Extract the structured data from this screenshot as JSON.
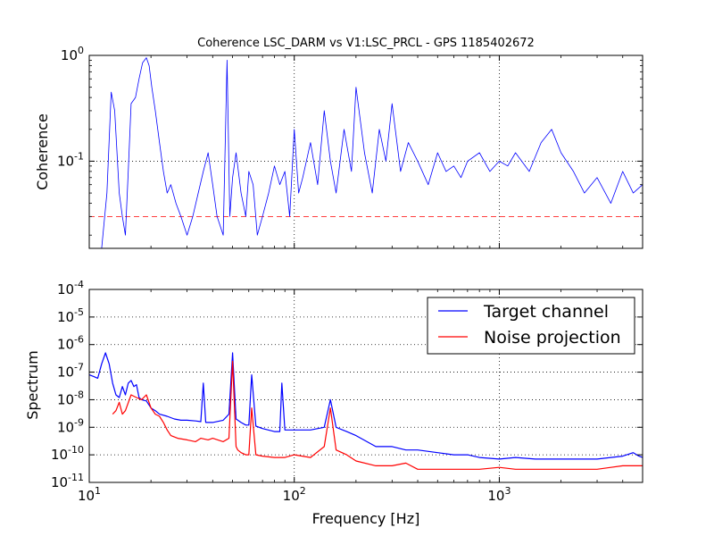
{
  "chart_data": [
    {
      "type": "line",
      "title": "Coherence LSC_DARM vs V1:LSC_PRCL - GPS 1185402672",
      "ylabel": "Coherence",
      "xlabel": "",
      "xscale": "log",
      "yscale": "log",
      "xlim": [
        10,
        5000
      ],
      "ylim": [
        0.015,
        1.0
      ],
      "xticks": [
        10,
        100,
        1000
      ],
      "xtick_labels": [
        "",
        "",
        ""
      ],
      "yticks": [
        0.1,
        1.0
      ],
      "ytick_labels": [
        {
          "base": "10",
          "exp": "-1"
        },
        {
          "base": "10",
          "exp": "0"
        }
      ],
      "grid": true,
      "threshold": {
        "y": 0.03,
        "color": "#ff0000",
        "style": "dashed"
      },
      "series": [
        {
          "color": "#0000ff",
          "x": [
            11.5,
            12.2,
            12.8,
            13.3,
            14.0,
            14.5,
            15.0,
            15.5,
            16.0,
            16.8,
            17.5,
            18.2,
            19.0,
            19.6,
            20.2,
            21.0,
            22.0,
            23.0,
            24.0,
            25.0,
            26.5,
            28.0,
            30.0,
            32.0,
            34.0,
            36.0,
            38.0,
            40.0,
            42.0,
            45.0,
            47.0,
            48.5,
            50.0,
            52.0,
            55.0,
            58.0,
            60.0,
            63.0,
            66.0,
            70.0,
            75.0,
            80.0,
            85.0,
            90.0,
            95.0,
            100.0,
            105.0,
            110.0,
            120.0,
            130.0,
            140.0,
            150.0,
            160.0,
            175.0,
            190.0,
            200.0,
            220.0,
            240.0,
            260.0,
            280.0,
            300.0,
            330.0,
            360.0,
            400.0,
            450.0,
            500.0,
            550.0,
            600.0,
            650.0,
            700.0,
            800.0,
            900.0,
            1000.0,
            1100.0,
            1200.0,
            1400.0,
            1600.0,
            1800.0,
            2000.0,
            2300.0,
            2600.0,
            3000.0,
            3500.0,
            4000.0,
            4500.0,
            5000.0
          ],
          "y": [
            0.015,
            0.05,
            0.45,
            0.3,
            0.05,
            0.03,
            0.02,
            0.08,
            0.35,
            0.4,
            0.6,
            0.85,
            0.95,
            0.8,
            0.5,
            0.3,
            0.15,
            0.08,
            0.05,
            0.06,
            0.04,
            0.03,
            0.02,
            0.03,
            0.05,
            0.08,
            0.12,
            0.06,
            0.03,
            0.02,
            0.9,
            0.03,
            0.07,
            0.12,
            0.05,
            0.03,
            0.08,
            0.06,
            0.02,
            0.03,
            0.05,
            0.09,
            0.06,
            0.08,
            0.03,
            0.2,
            0.05,
            0.07,
            0.15,
            0.06,
            0.3,
            0.1,
            0.05,
            0.2,
            0.08,
            0.5,
            0.12,
            0.05,
            0.2,
            0.1,
            0.35,
            0.08,
            0.15,
            0.1,
            0.06,
            0.12,
            0.08,
            0.09,
            0.07,
            0.1,
            0.12,
            0.08,
            0.1,
            0.09,
            0.12,
            0.08,
            0.15,
            0.2,
            0.12,
            0.08,
            0.05,
            0.07,
            0.04,
            0.08,
            0.05,
            0.06
          ]
        }
      ]
    },
    {
      "type": "line",
      "title": "",
      "xlabel": "Frequency [Hz]",
      "ylabel": "Spectrum",
      "xscale": "log",
      "yscale": "log",
      "xlim": [
        10,
        5000
      ],
      "ylim": [
        1e-11,
        0.0001
      ],
      "xticks": [
        10,
        100,
        1000
      ],
      "xtick_labels": [
        {
          "base": "10",
          "exp": "1"
        },
        {
          "base": "10",
          "exp": "2"
        },
        {
          "base": "10",
          "exp": "3"
        }
      ],
      "yticks": [
        1e-11,
        1e-10,
        1e-09,
        1e-08,
        1e-07,
        1e-06,
        1e-05,
        0.0001
      ],
      "ytick_labels": [
        {
          "base": "10",
          "exp": "-11"
        },
        {
          "base": "10",
          "exp": "-10"
        },
        {
          "base": "10",
          "exp": "-9"
        },
        {
          "base": "10",
          "exp": "-8"
        },
        {
          "base": "10",
          "exp": "-7"
        },
        {
          "base": "10",
          "exp": "-6"
        },
        {
          "base": "10",
          "exp": "-5"
        },
        {
          "base": "10",
          "exp": "-4"
        }
      ],
      "grid": true,
      "legend": {
        "position": "top-right"
      },
      "series": [
        {
          "name": "Target channel",
          "color": "#0000ff",
          "x": [
            10.0,
            10.5,
            11.0,
            11.5,
            12.0,
            12.5,
            13.0,
            13.5,
            14.0,
            14.5,
            15.0,
            15.5,
            16.0,
            16.5,
            17.0,
            17.5,
            18.0,
            19.0,
            20.0,
            21.0,
            22.0,
            24.0,
            26.0,
            28.0,
            30.0,
            33.0,
            35.0,
            36.0,
            37.0,
            40.0,
            45.0,
            48.0,
            50.0,
            52.0,
            55.0,
            58.0,
            60.0,
            62.0,
            65.0,
            70.0,
            80.0,
            85.0,
            87.0,
            90.0,
            100.0,
            120.0,
            140.0,
            150.0,
            160.0,
            180.0,
            200.0,
            250.0,
            300.0,
            350.0,
            400.0,
            500.0,
            600.0,
            700.0,
            800.0,
            1000.0,
            1200.0,
            1500.0,
            2000.0,
            2500.0,
            3000.0,
            3500.0,
            4000.0,
            4500.0,
            4800.0,
            5000.0
          ],
          "y": [
            8e-08,
            7e-08,
            6e-08,
            2e-07,
            5e-07,
            2e-07,
            4e-08,
            1.5e-08,
            1.2e-08,
            3e-08,
            1.5e-08,
            4e-08,
            5e-08,
            3e-08,
            3.5e-08,
            1.2e-08,
            1e-08,
            9e-09,
            5e-09,
            4e-09,
            3e-09,
            2.5e-09,
            2e-09,
            1.8e-09,
            1.8e-09,
            1.7e-09,
            1.6e-09,
            4e-08,
            1.5e-09,
            1.5e-09,
            1.8e-09,
            3e-09,
            5e-07,
            2e-09,
            1.5e-09,
            1.2e-09,
            1.2e-09,
            8e-08,
            1.1e-09,
            9e-10,
            7e-10,
            7e-10,
            4e-08,
            8e-10,
            8e-10,
            8e-10,
            1e-09,
            1e-08,
            1e-09,
            7e-10,
            5e-10,
            2e-10,
            2e-10,
            1.5e-10,
            1.5e-10,
            1.2e-10,
            1e-10,
            1e-10,
            8e-11,
            7e-11,
            8e-11,
            7e-11,
            7e-11,
            7e-11,
            7e-11,
            8e-11,
            9e-11,
            1.2e-10,
            9e-11,
            8e-11
          ]
        },
        {
          "name": "Noise projection",
          "color": "#ff0000",
          "x": [
            13.0,
            13.5,
            14.0,
            14.5,
            15.0,
            16.0,
            17.0,
            18.0,
            19.0,
            20.0,
            21.0,
            22.0,
            23.0,
            24.0,
            25.0,
            27.0,
            30.0,
            33.0,
            35.0,
            38.0,
            40.0,
            45.0,
            48.0,
            50.0,
            52.0,
            53.0,
            55.0,
            58.0,
            60.0,
            62.0,
            65.0,
            70.0,
            80.0,
            90.0,
            100.0,
            120.0,
            140.0,
            150.0,
            160.0,
            180.0,
            200.0,
            250.0,
            300.0,
            350.0,
            400.0,
            500.0,
            600.0,
            700.0,
            800.0,
            1000.0,
            1200.0,
            1500.0,
            1800.0,
            2000.0,
            2500.0,
            3000.0,
            3500.0,
            4000.0,
            4500.0,
            5000.0
          ],
          "y": [
            3e-09,
            4e-09,
            8e-09,
            3e-09,
            4e-09,
            1.5e-08,
            1.2e-08,
            1e-08,
            1.5e-08,
            5e-09,
            3e-09,
            2.5e-09,
            1.5e-09,
            8e-10,
            5e-10,
            4e-10,
            3.5e-10,
            3e-10,
            4e-10,
            3.5e-10,
            4e-10,
            3e-10,
            4e-10,
            2.5e-07,
            2e-10,
            1.5e-10,
            1.2e-10,
            1e-10,
            1e-10,
            5e-09,
            1e-10,
            9e-11,
            8e-11,
            8e-11,
            1e-10,
            8e-11,
            2e-10,
            5e-09,
            1.5e-10,
            1e-10,
            6e-11,
            4e-11,
            4e-11,
            5e-11,
            3e-11,
            3e-11,
            3e-11,
            3e-11,
            3e-11,
            3.5e-11,
            3e-11,
            3e-11,
            3e-11,
            3e-11,
            3e-11,
            3e-11,
            3.5e-11,
            4e-11,
            4e-11,
            4e-11
          ]
        }
      ]
    }
  ]
}
